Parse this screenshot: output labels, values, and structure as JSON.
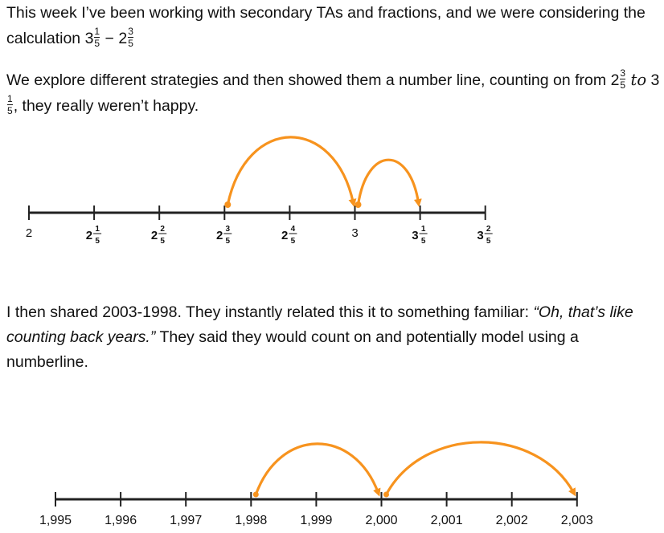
{
  "paragraph1": {
    "text": "This week I’ve been working with secondary TAs and fractions, and we were considering the calculation",
    "expr": {
      "a_whole": "3",
      "a_num": "1",
      "a_den": "5",
      "op": "−",
      "b_whole": "2",
      "b_num": "3",
      "b_den": "5"
    }
  },
  "paragraph2": {
    "text": "We explore different strategies and then showed them a number line, counting on from",
    "from_whole": "2",
    "from_num": "3",
    "from_den": "5",
    "to_word": "to",
    "to_whole": "3",
    "to_num": "1",
    "to_den": "5",
    "tail": ", they really weren’t happy."
  },
  "numberline1": {
    "ticks": [
      {
        "whole": "2",
        "num": "",
        "den": ""
      },
      {
        "whole": "2",
        "num": "1",
        "den": "5"
      },
      {
        "whole": "2",
        "num": "2",
        "den": "5"
      },
      {
        "whole": "2",
        "num": "3",
        "den": "5"
      },
      {
        "whole": "2",
        "num": "4",
        "den": "5"
      },
      {
        "whole": "3",
        "num": "",
        "den": ""
      },
      {
        "whole": "3",
        "num": "1",
        "den": "5"
      },
      {
        "whole": "3",
        "num": "2",
        "den": "5"
      }
    ],
    "jumps": [
      {
        "from": 3,
        "to": 5
      },
      {
        "from": 5,
        "to": 6
      }
    ],
    "arrow_color": "#f7931e",
    "line_color": "#222222"
  },
  "paragraph3": {
    "text_before": "I then shared 2003-1998. They instantly related this it to something familiar:",
    "quote": "“Oh, that’s like counting back years.”",
    "text_after": "They said they would count on and potentially model using a numberline."
  },
  "numberline2": {
    "tick_labels": [
      "1,995",
      "1,996",
      "1,997",
      "1,998",
      "1,999",
      "2,000",
      "2,001",
      "2,002",
      "2,003"
    ],
    "jumps": [
      {
        "from": 3,
        "to": 5
      },
      {
        "from": 5,
        "to": 8
      }
    ],
    "arrow_color": "#f7931e",
    "line_color": "#222222"
  }
}
